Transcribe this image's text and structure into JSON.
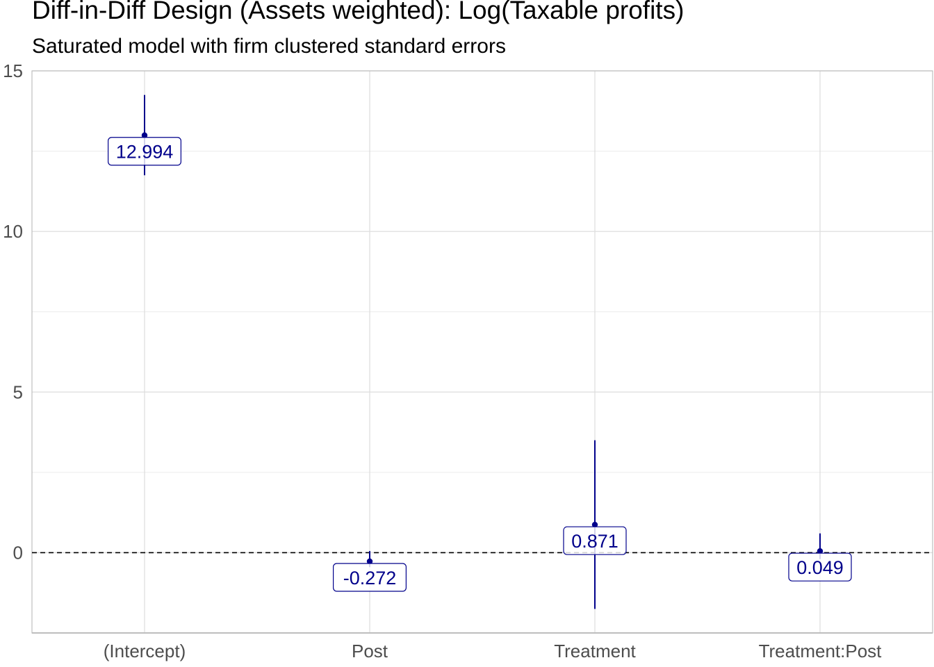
{
  "chart_data": {
    "type": "scatter",
    "title": "Diff-in-Diff Design (Assets weighted): Log(Taxable profits)",
    "subtitle": "Saturated model with firm clustered standard errors",
    "xlabel": "",
    "ylabel": "",
    "categories": [
      "(Intercept)",
      "Post",
      "Treatment",
      "Treatment:Post"
    ],
    "values": [
      12.994,
      -0.272,
      0.871,
      0.049
    ],
    "value_labels": [
      "12.994",
      "-0.272",
      "0.871",
      "0.049"
    ],
    "ci_low": [
      11.75,
      -0.45,
      -1.75,
      -0.2
    ],
    "ci_high": [
      14.25,
      0.05,
      3.5,
      0.6
    ],
    "reference_line": 0,
    "ylim": [
      -2.5,
      15
    ],
    "y_ticks": [
      0,
      5,
      10,
      15
    ],
    "y_tick_labels": [
      "0",
      "5",
      "10",
      "15"
    ],
    "grid": true,
    "colors": {
      "estimate": "#00008b",
      "reference_line": "#000000",
      "grid": "#dedede",
      "axis": "#bdbdbd"
    }
  }
}
